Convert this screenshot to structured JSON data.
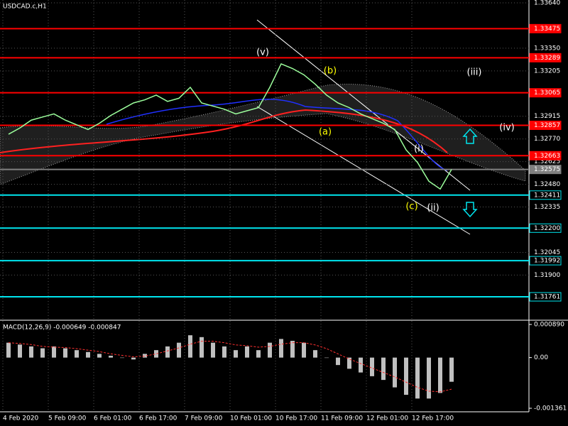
{
  "chart_data": [
    {
      "type": "line",
      "title": "USDCAD.c,H1",
      "categories": [
        "4 Feb 2020",
        null,
        null,
        null,
        "5 Feb 09:00",
        null,
        null,
        null,
        "6 Feb 01:00",
        null,
        null,
        null,
        "6 Feb 17:00",
        null,
        null,
        null,
        "7 Feb 09:00",
        null,
        null,
        null,
        "10 Feb 01:00",
        null,
        null,
        null,
        "10 Feb 17:00",
        null,
        null,
        null,
        "11 Feb 09:00",
        null,
        null,
        null,
        "12 Feb 01:00",
        null,
        null,
        null,
        "12 Feb 17:00",
        null,
        null,
        null
      ],
      "series": [
        {
          "name": "USDCAD.c",
          "color": "#9cff9c",
          "values": [
            1.328,
            1.3284,
            1.3289,
            1.3291,
            1.3293,
            1.3289,
            1.3286,
            1.3283,
            1.3287,
            1.3292,
            1.3296,
            1.33,
            1.3302,
            1.3305,
            1.3301,
            1.3303,
            1.331,
            1.33,
            1.3298,
            1.3296,
            1.3293,
            1.3295,
            1.3297,
            1.331,
            1.3325,
            1.3322,
            1.3318,
            1.3312,
            1.3305,
            1.33,
            1.3297,
            1.3293,
            1.329,
            1.3287,
            1.3283,
            1.327,
            1.3262,
            1.325,
            1.3245,
            1.32575
          ]
        }
      ],
      "ylim": [
        1.31616,
        1.33658
      ],
      "yticks": [
        {
          "value": 1.3364,
          "label": "1.33640"
        },
        {
          "value": 1.3335,
          "label": "1.33350"
        },
        1.33205,
        1.32915,
        {
          "value": 1.3277,
          "label": "1.32770"
        },
        1.32625,
        {
          "value": 1.3248,
          "label": "1.32480"
        },
        1.32335,
        1.32045,
        {
          "value": 1.319,
          "label": "1.31900"
        }
      ],
      "levels": [
        {
          "value": 1.33475,
          "color": "#ff0000"
        },
        {
          "value": 1.33289,
          "color": "#ff0000"
        },
        {
          "value": 1.33065,
          "color": "#ff0000"
        },
        {
          "value": 1.32857,
          "color": "#ff0000"
        },
        {
          "value": 1.32663,
          "color": "#ff0000"
        },
        {
          "value": 1.32575,
          "color": "#808080"
        },
        {
          "value": 1.32411,
          "color": "#00e5ee"
        },
        {
          "value": 1.322,
          "label": "1.32200",
          "color": "#00e5ee"
        },
        {
          "value": 1.31992,
          "color": "#00e5ee"
        },
        {
          "value": 1.31761,
          "color": "#00e5ee"
        }
      ],
      "annotations": [
        {
          "text": "(v)",
          "color": "#ffffff"
        },
        {
          "text": "(b)",
          "color": "#ffff00"
        },
        {
          "text": "(a)",
          "color": "#ffff00"
        },
        {
          "text": "(iii)",
          "color": "#ffffff"
        },
        {
          "text": "(i)",
          "color": "#ffffff"
        },
        {
          "text": "(iv)",
          "color": "#ffffff"
        },
        {
          "text": "(c)",
          "color": "#ffff00"
        },
        {
          "text": "(ii)",
          "color": "#ffffff"
        }
      ],
      "grid": true
    },
    {
      "type": "macd",
      "title": "MACD(12,26,9) -0.000649 -0.000847",
      "series": [
        {
          "name": "MACD",
          "color": "#c0c0c0",
          "values": [
            0.0004,
            0.00035,
            0.0003,
            0.00025,
            0.0003,
            0.00025,
            0.0002,
            0.00015,
            0.0001,
            5e-05,
            0.0,
            -5e-05,
            0.0001,
            0.0002,
            0.0003,
            0.0004,
            0.0006,
            0.00055,
            0.0004,
            0.0003,
            0.0002,
            0.0003,
            0.0002,
            0.0004,
            0.0005,
            0.00045,
            0.0004,
            0.0002,
            0.0,
            -0.0002,
            -0.0003,
            -0.0004,
            -0.0005,
            -0.0006,
            -0.0008,
            -0.001,
            -0.0011,
            -0.0011,
            -0.00095,
            -0.000649
          ]
        },
        {
          "name": "Signal",
          "color": "#ff3030",
          "values": [
            0.0004,
            0.00038,
            0.00035,
            0.0003,
            0.00028,
            0.00027,
            0.00024,
            0.0002,
            0.00016,
            0.0001,
            6e-05,
            2e-05,
            4e-05,
            0.0001,
            0.00018,
            0.00026,
            0.00036,
            0.00044,
            0.00044,
            0.0004,
            0.00034,
            0.00032,
            0.00028,
            0.0003,
            0.00036,
            0.0004,
            0.0004,
            0.00034,
            0.00024,
            0.0001,
            -4e-05,
            -0.00016,
            -0.00028,
            -0.0004,
            -0.00052,
            -0.00066,
            -0.0008,
            -0.0009,
            -0.00092,
            -0.000847
          ]
        }
      ],
      "ylim": [
        -0.001456,
        0.000985
      ],
      "yticks": [
        {
          "value": 0.00089,
          "label": "0.000890"
        },
        {
          "value": 0,
          "label": "0.00"
        },
        {
          "value": -0.001361,
          "label": "-0.001361"
        }
      ]
    }
  ]
}
